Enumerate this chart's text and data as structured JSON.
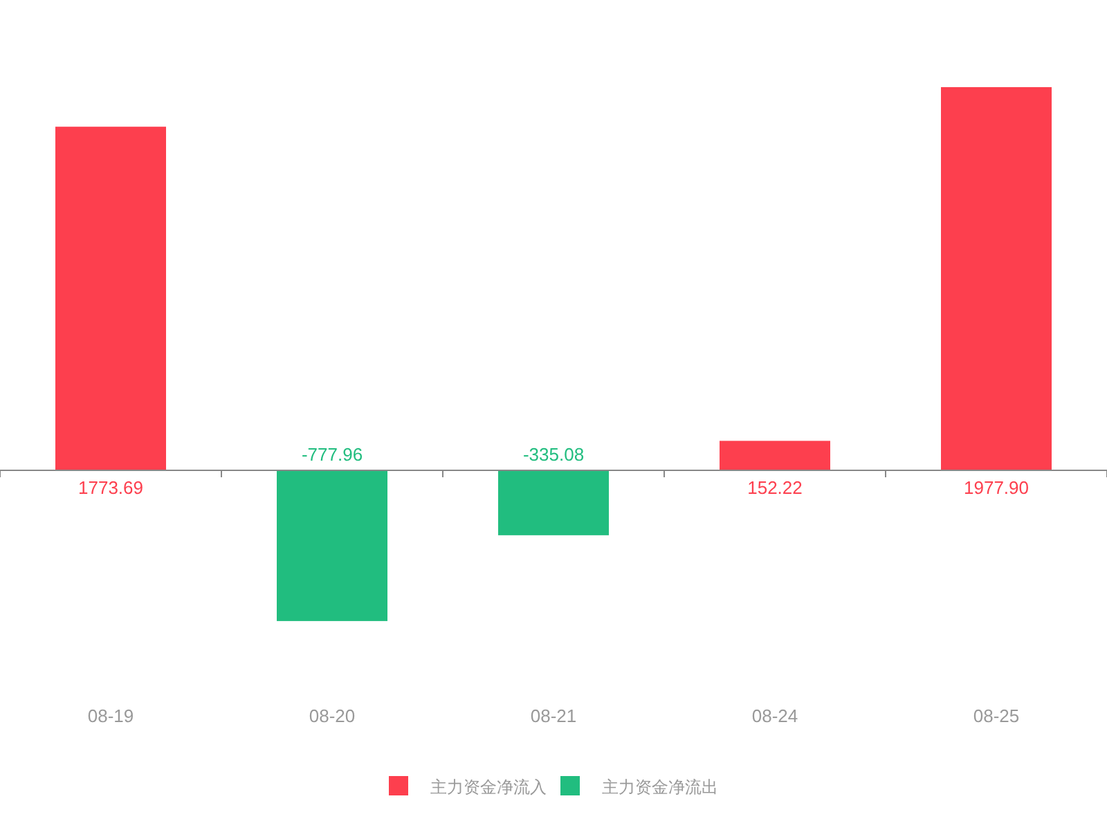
{
  "chart_data": {
    "type": "bar",
    "categories": [
      "08-19",
      "08-20",
      "08-21",
      "08-24",
      "08-25"
    ],
    "series": [
      {
        "name": "主力资金净流入",
        "color": "#fd3f4e",
        "values": [
          1773.69,
          null,
          null,
          152.22,
          1977.9
        ],
        "value_labels": [
          "1773.69",
          null,
          null,
          "152.22",
          "1977.90"
        ]
      },
      {
        "name": "主力资金净流出",
        "color": "#21bd7f",
        "values": [
          null,
          -777.96,
          -335.08,
          null,
          null
        ],
        "value_labels": [
          null,
          "-777.96",
          "-335.08",
          null,
          null
        ]
      }
    ],
    "stacked": true,
    "legend": "bottom"
  }
}
